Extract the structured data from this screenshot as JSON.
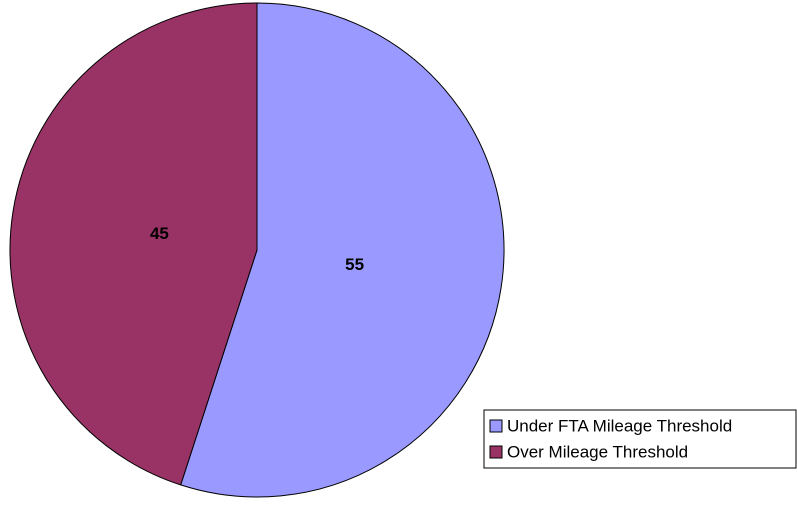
{
  "chart_data": {
    "type": "pie",
    "categories": [
      "Under FTA Mileage Threshold",
      "Over Mileage Threshold"
    ],
    "values": [
      55,
      45
    ],
    "colors": [
      "#9999ff",
      "#993366"
    ],
    "legend": "lower right"
  }
}
